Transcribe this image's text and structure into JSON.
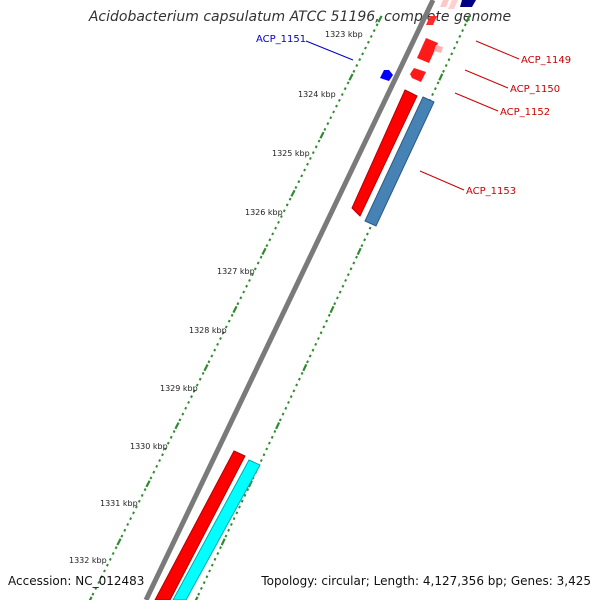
{
  "title": "Acidobacterium capsulatum ATCC 51196, complete genome",
  "accession_text": "Accession: NC_012483",
  "topology_text": "Topology: circular; Length: 4,127,356 bp; Genes: 3,425",
  "colors": {
    "backbone": "#7f7f7f",
    "ticks": "#2e8b2e",
    "forward_cds": "#ff0000",
    "reverse_cds": "#4682b4",
    "rna": "#00ffff",
    "label_forward": "#cc0000",
    "label_reverse": "#0000cc",
    "dark_gene": "#000080"
  },
  "ruler": {
    "labels": [
      "1323 kbp",
      "1324 kbp",
      "1325 kbp",
      "1326 kbp",
      "1327 kbp",
      "1328 kbp",
      "1329 kbp",
      "1330 kbp",
      "1331 kbp",
      "1332 kbp"
    ]
  },
  "gene_labels": [
    {
      "text": "ACP_1151",
      "strand": "reverse"
    },
    {
      "text": "ACP_1149",
      "strand": "forward"
    },
    {
      "text": "ACP_1150",
      "strand": "forward"
    },
    {
      "text": "ACP_1152",
      "strand": "forward"
    },
    {
      "text": "ACP_1153",
      "strand": "forward"
    }
  ]
}
